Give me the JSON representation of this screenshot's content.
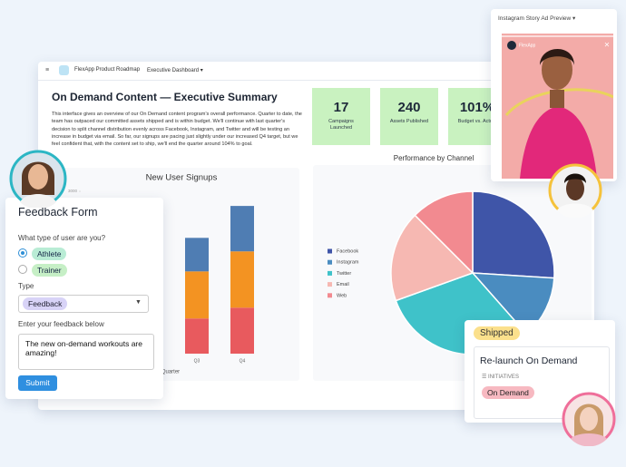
{
  "header": {
    "app": "FlexApp Product Roadmap",
    "view": "Executive Dashboard"
  },
  "summary": {
    "title": "On Demand Content — Executive Summary",
    "body": "This interface gives an overview of our On Demand content program's overall performance. Quarter to date, the team has outpaced our committed assets shipped and is within budget. We'll continue with last quarter's decision to split channel distribution evenly across Facebook, Instagram, and Twitter and will be testing an increase in budget via email. So far, our signups are pacing just slightly under our increased Q4 target, but we feel confident that, with the content set to ship, we'll end the quarter around 104% to goal."
  },
  "kpis": [
    {
      "value": "17",
      "label": "Campaigns Launched"
    },
    {
      "value": "240",
      "label": "Assets Published"
    },
    {
      "value": "101%",
      "label": "Budget vs. Actual"
    }
  ],
  "chart_data": [
    {
      "type": "bar",
      "title": "New User Signups",
      "x_label": "Quarter",
      "categories": [
        "Q3",
        "Q4"
      ],
      "stacked": true,
      "ylim": [
        0,
        3000
      ],
      "yticks": [
        3000
      ],
      "series": [
        {
          "color": "#e85a5e",
          "values": [
            650,
            850
          ]
        },
        {
          "color": "#f39322",
          "values": [
            870,
            1040
          ]
        },
        {
          "color": "#4f7db3",
          "values": [
            620,
            840
          ]
        }
      ]
    },
    {
      "type": "pie",
      "title": "Performance by Channel",
      "categories": [
        "Facebook",
        "Instagram",
        "Twitter",
        "Email",
        "Web"
      ],
      "values": [
        26,
        12.5,
        31,
        18,
        12.5
      ],
      "colors": [
        "#3f55a8",
        "#4a8cc0",
        "#3fc2c9",
        "#f6b8b2",
        "#f28a90"
      ]
    }
  ],
  "feedback_form": {
    "title": "Feedback Form",
    "question": "What type of user are you?",
    "options": [
      "Athlete",
      "Trainer"
    ],
    "type_label": "Type",
    "type_value": "Feedback",
    "feedback_label": "Enter your feedback below",
    "feedback_text": "The new on-demand workouts are amazing!",
    "submit": "Submit"
  },
  "story_ad": {
    "title": "Instagram Story Ad Preview",
    "account": "FlexApp"
  },
  "initiative_card": {
    "status": "Shipped",
    "title": "Re-launch On Demand",
    "field": "INITIATIVES",
    "tag": "On Demand"
  }
}
